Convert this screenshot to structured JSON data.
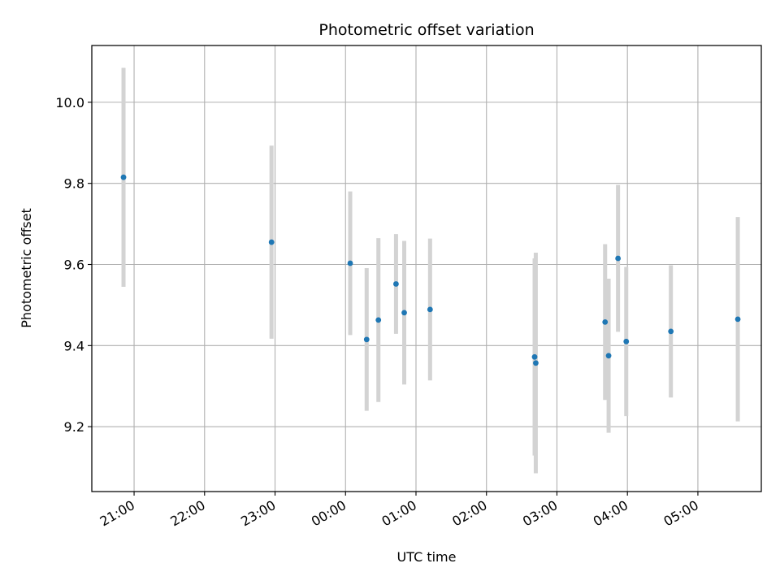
{
  "chart_data": {
    "type": "scatter",
    "title": "Photometric offset variation",
    "xlabel": "UTC time",
    "ylabel": "Photometric offset",
    "x_reference_date": "2000-01-01",
    "xlim": [
      "2000-01-01T20:24",
      "2000-01-02T05:54"
    ],
    "ylim": [
      9.04,
      10.14
    ],
    "x_ticks": [
      {
        "t": "2000-01-01T21:00",
        "label": "21:00"
      },
      {
        "t": "2000-01-01T22:00",
        "label": "22:00"
      },
      {
        "t": "2000-01-01T23:00",
        "label": "23:00"
      },
      {
        "t": "2000-01-02T00:00",
        "label": "00:00"
      },
      {
        "t": "2000-01-02T01:00",
        "label": "01:00"
      },
      {
        "t": "2000-01-02T02:00",
        "label": "02:00"
      },
      {
        "t": "2000-01-02T03:00",
        "label": "03:00"
      },
      {
        "t": "2000-01-02T04:00",
        "label": "04:00"
      },
      {
        "t": "2000-01-02T05:00",
        "label": "05:00"
      }
    ],
    "y_ticks": [
      {
        "v": 9.2,
        "label": "9.2"
      },
      {
        "v": 9.4,
        "label": "9.4"
      },
      {
        "v": 9.6,
        "label": "9.6"
      },
      {
        "v": 9.8,
        "label": "9.8"
      },
      {
        "v": 10.0,
        "label": "10.0"
      }
    ],
    "grid": true,
    "marker_color": "#1f77b4",
    "errorbar_color": "#d3d3d3",
    "points": [
      {
        "t": "2000-01-01T20:51",
        "y": 9.815,
        "err": 0.27
      },
      {
        "t": "2000-01-01T22:57",
        "y": 9.655,
        "err": 0.238
      },
      {
        "t": "2000-01-02T00:04",
        "y": 9.603,
        "err": 0.177
      },
      {
        "t": "2000-01-02T00:18",
        "y": 9.415,
        "err": 0.176
      },
      {
        "t": "2000-01-02T00:28",
        "y": 9.463,
        "err": 0.202
      },
      {
        "t": "2000-01-02T00:43",
        "y": 9.552,
        "err": 0.123
      },
      {
        "t": "2000-01-02T00:50",
        "y": 9.481,
        "err": 0.177
      },
      {
        "t": "2000-01-02T01:12",
        "y": 9.489,
        "err": 0.175
      },
      {
        "t": "2000-01-02T02:41",
        "y": 9.372,
        "err": 0.243
      },
      {
        "t": "2000-01-02T02:42",
        "y": 9.357,
        "err": 0.272
      },
      {
        "t": "2000-01-02T03:41",
        "y": 9.458,
        "err": 0.192
      },
      {
        "t": "2000-01-02T03:44",
        "y": 9.375,
        "err": 0.19
      },
      {
        "t": "2000-01-02T03:52",
        "y": 9.615,
        "err": 0.181
      },
      {
        "t": "2000-01-02T03:59",
        "y": 9.41,
        "err": 0.184
      },
      {
        "t": "2000-01-02T04:37",
        "y": 9.435,
        "err": 0.163
      },
      {
        "t": "2000-01-02T05:34",
        "y": 9.465,
        "err": 0.252
      }
    ]
  }
}
